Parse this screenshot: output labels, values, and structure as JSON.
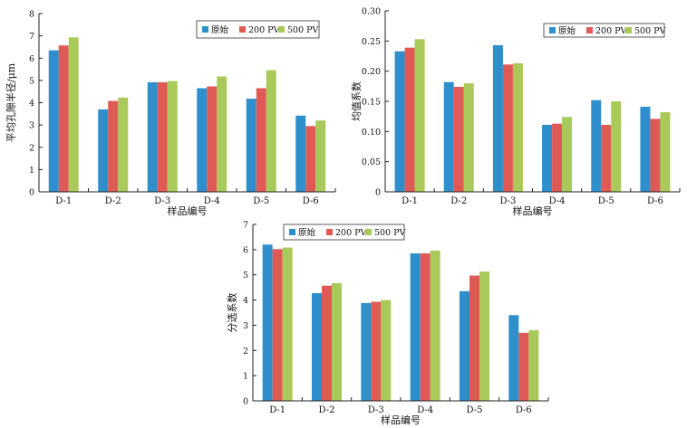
{
  "chart_data": [
    {
      "type": "bar",
      "categories": [
        "D-1",
        "D-2",
        "D-3",
        "D-4",
        "D-5",
        "D-6"
      ],
      "series": [
        {
          "name": "原始",
          "color": "#2e8fcc",
          "values": [
            6.35,
            3.7,
            4.92,
            4.65,
            4.18,
            3.42
          ]
        },
        {
          "name": "200 PV",
          "color": "#e05a55",
          "values": [
            6.57,
            4.08,
            4.92,
            4.73,
            4.65,
            2.95
          ]
        },
        {
          "name": "500 PV",
          "color": "#a9c95a",
          "values": [
            6.93,
            4.23,
            4.97,
            5.18,
            5.46,
            3.2
          ]
        }
      ],
      "xlabel": "样品编号",
      "ylabel": "平均孔隙半径/μm",
      "ylim": [
        0,
        8
      ],
      "yticks": [
        "0",
        "1",
        "2",
        "3",
        "4",
        "5",
        "6",
        "7",
        "8"
      ],
      "legend_position": "top-right",
      "grid": false
    },
    {
      "type": "bar",
      "categories": [
        "D-1",
        "D-2",
        "D-3",
        "D-4",
        "D-5",
        "D-6"
      ],
      "series": [
        {
          "name": "原始",
          "color": "#2e8fcc",
          "values": [
            0.233,
            0.182,
            0.243,
            0.111,
            0.152,
            0.141
          ]
        },
        {
          "name": "200 PV",
          "color": "#e05a55",
          "values": [
            0.239,
            0.174,
            0.211,
            0.113,
            0.111,
            0.121
          ]
        },
        {
          "name": "500 PV",
          "color": "#a9c95a",
          "values": [
            0.253,
            0.18,
            0.213,
            0.124,
            0.15,
            0.132
          ]
        }
      ],
      "xlabel": "样品编号",
      "ylabel": "均值系数",
      "ylim": [
        0,
        0.3
      ],
      "yticks": [
        "0",
        "0.05",
        "0.10",
        "0.15",
        "0.20",
        "0.25",
        "0.30"
      ],
      "legend_position": "top-right",
      "grid": false
    },
    {
      "type": "bar",
      "categories": [
        "D-1",
        "D-2",
        "D-3",
        "D-4",
        "D-5",
        "D-6"
      ],
      "series": [
        {
          "name": "原始",
          "color": "#2e8fcc",
          "values": [
            6.2,
            4.27,
            3.88,
            5.85,
            4.35,
            3.4
          ]
        },
        {
          "name": "200 PV",
          "color": "#e05a55",
          "values": [
            6.02,
            4.57,
            3.93,
            5.85,
            4.97,
            2.7
          ]
        },
        {
          "name": "500 PV",
          "color": "#a9c95a",
          "values": [
            6.08,
            4.67,
            4.0,
            5.96,
            5.13,
            2.8
          ]
        }
      ],
      "xlabel": "样品编号",
      "ylabel": "分选系数",
      "ylim": [
        0,
        7
      ],
      "yticks": [
        "0",
        "1",
        "2",
        "3",
        "4",
        "5",
        "6",
        "7"
      ],
      "legend_position": "top-left",
      "grid": false
    }
  ]
}
